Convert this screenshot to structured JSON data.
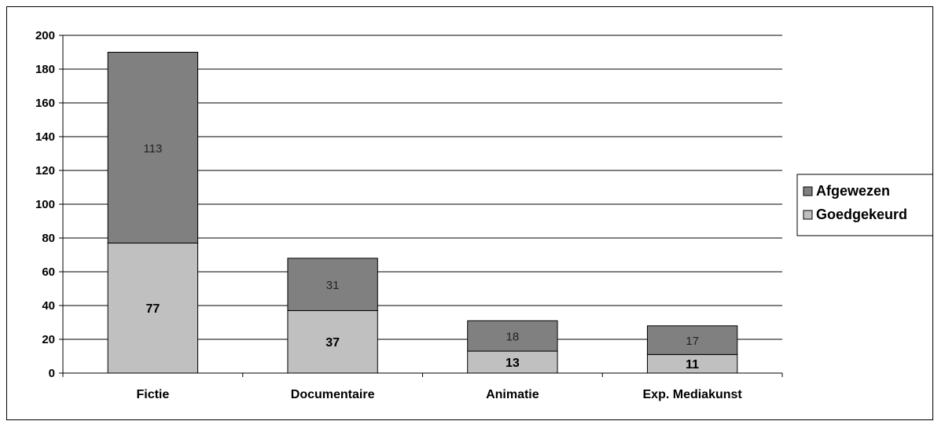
{
  "chart_data": {
    "type": "bar",
    "stacked": true,
    "title": "",
    "xlabel": "",
    "ylabel": "",
    "categories": [
      "Fictie",
      "Documentaire",
      "Animatie",
      "Exp. Mediakunst"
    ],
    "series": [
      {
        "name": "Goedgekeurd",
        "values": [
          77,
          37,
          13,
          11
        ],
        "color": "#c0c0c0"
      },
      {
        "name": "Afgewezen",
        "values": [
          113,
          31,
          18,
          17
        ],
        "color": "#808080"
      }
    ],
    "ylim": [
      0,
      200
    ],
    "yticks": [
      0,
      20,
      40,
      60,
      80,
      100,
      120,
      140,
      160,
      180,
      200
    ],
    "grid": true,
    "legend": {
      "placement": "right",
      "entries": [
        {
          "label": "Afgewezen",
          "color": "#808080"
        },
        {
          "label": "Goedgekeurd",
          "color": "#c0c0c0"
        }
      ]
    }
  }
}
